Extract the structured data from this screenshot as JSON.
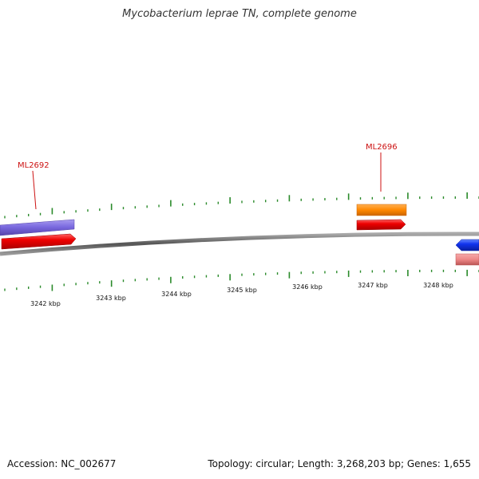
{
  "title": "Mycobacterium leprae TN, complete genome",
  "footer": {
    "accession": "Accession: NC_002677",
    "summary": "Topology: circular; Length: 3,268,203 bp; Genes: 1,655"
  },
  "ticks": [
    {
      "label": "3242 kbp"
    },
    {
      "label": "3243 kbp"
    },
    {
      "label": "3244 kbp"
    },
    {
      "label": "3245 kbp"
    },
    {
      "label": "3246 kbp"
    },
    {
      "label": "3247 kbp"
    },
    {
      "label": "3248 kbp"
    }
  ],
  "gene_labels": [
    {
      "name": "ML2692"
    },
    {
      "name": "ML2696"
    }
  ],
  "colors": {
    "backbone": "#777777",
    "tick": "#2a8a2a",
    "forward_cds": "#ee1111",
    "reverse_cds": "#1133ee",
    "pink_feature": "#ee8888",
    "blue_feature": "#7766dd",
    "orange_feature": "#ff8800"
  }
}
